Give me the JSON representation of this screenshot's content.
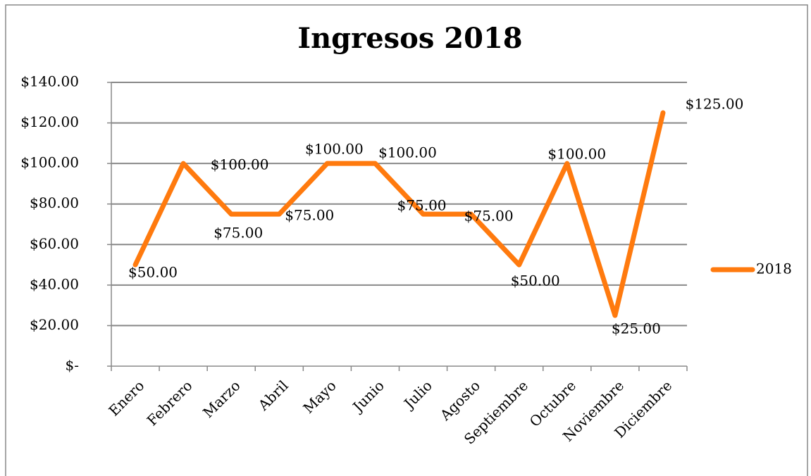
{
  "chart_data": {
    "type": "line",
    "title": "Ingresos 2018",
    "categories": [
      "Enero",
      "Febrero",
      "Marzo",
      "Abril",
      "Mayo",
      "Junio",
      "Julio",
      "Agosto",
      "Septiembre",
      "Octubre",
      "Noviembre",
      "Diciembre"
    ],
    "series": [
      {
        "name": "2018",
        "color": "#ff7a0e",
        "values": [
          50,
          100,
          75,
          75,
          100,
          100,
          75,
          75,
          50,
          100,
          25,
          125
        ],
        "value_labels": [
          "$50.00",
          "$100.00",
          "$75.00",
          "$75.00",
          "$100.00",
          "$100.00",
          "$75.00",
          "$75.00",
          "$50.00",
          "$100.00",
          "$25.00",
          "$125.00"
        ]
      }
    ],
    "ylim": [
      0,
      140
    ],
    "yticks": [
      {
        "value": 0,
        "label": "$-"
      },
      {
        "value": 20,
        "label": "$20.00"
      },
      {
        "value": 40,
        "label": "$40.00"
      },
      {
        "value": 60,
        "label": "$60.00"
      },
      {
        "value": 80,
        "label": "$80.00"
      },
      {
        "value": 100,
        "label": "$100.00"
      },
      {
        "value": 120,
        "label": "$120.00"
      },
      {
        "value": 140,
        "label": "$140.00"
      }
    ],
    "grid": true,
    "legend": "right"
  }
}
